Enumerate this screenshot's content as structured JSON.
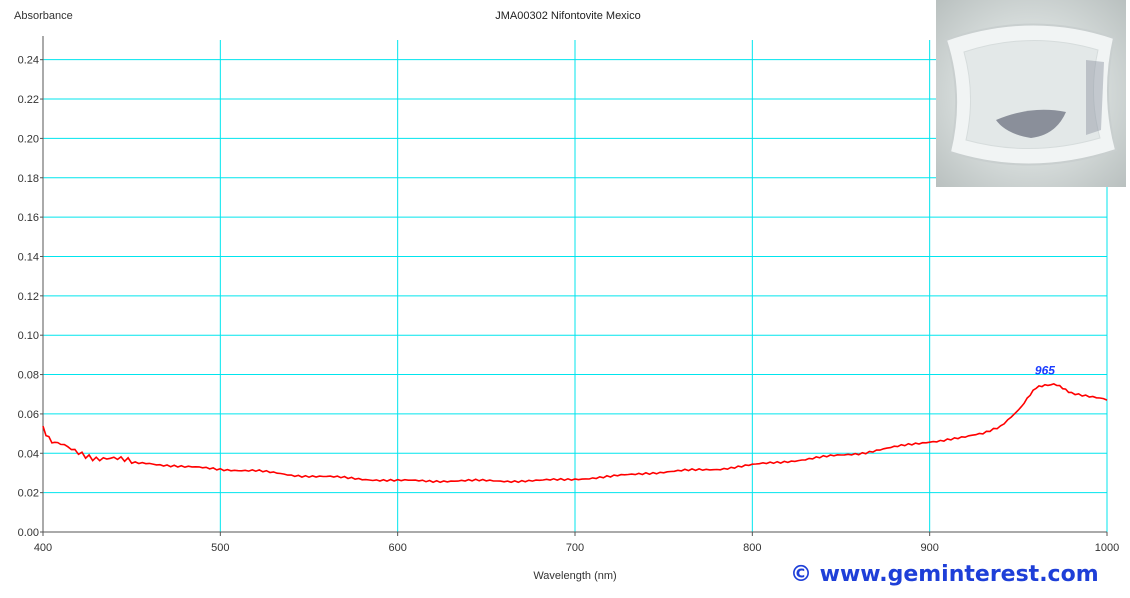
{
  "chart_data": {
    "type": "line",
    "title": "JMA00302 Nifontovite Mexico",
    "xlabel": "Wavelength (nm)",
    "ylabel": "Absorbance",
    "xlim": [
      400,
      1000
    ],
    "ylim": [
      0,
      0.25
    ],
    "x_ticks": [
      "400",
      "500",
      "600",
      "700",
      "800",
      "900",
      "1000"
    ],
    "y_ticks": [
      "0.00",
      "0.02",
      "0.04",
      "0.06",
      "0.08",
      "0.10",
      "0.12",
      "0.14",
      "0.16",
      "0.18",
      "0.20",
      "0.22",
      "0.24"
    ],
    "grid": true,
    "series": [
      {
        "color": "#ff0000",
        "x": [
          400,
          405,
          410,
          420,
          430,
          440,
          450,
          460,
          470,
          480,
          500,
          520,
          540,
          560,
          580,
          600,
          620,
          640,
          660,
          680,
          700,
          720,
          740,
          760,
          780,
          800,
          820,
          840,
          860,
          880,
          900,
          920,
          930,
          940,
          950,
          955,
          960,
          965,
          970,
          975,
          980,
          990,
          1000
        ],
        "y": [
          0.052,
          0.047,
          0.044,
          0.041,
          0.038,
          0.037,
          0.035,
          0.035,
          0.034,
          0.033,
          0.032,
          0.031,
          0.029,
          0.028,
          0.027,
          0.026,
          0.026,
          0.026,
          0.026,
          0.026,
          0.027,
          0.028,
          0.03,
          0.031,
          0.032,
          0.034,
          0.036,
          0.038,
          0.04,
          0.043,
          0.046,
          0.048,
          0.05,
          0.054,
          0.062,
          0.068,
          0.073,
          0.075,
          0.075,
          0.073,
          0.071,
          0.069,
          0.067
        ]
      }
    ],
    "annotations": [
      {
        "text": "965",
        "x": 965,
        "y": 0.076
      }
    ]
  },
  "watermark": "© www.geminterest.com",
  "colors": {
    "grid": "#00e5ee",
    "line": "#ff0000",
    "annotation": "#1a3cff",
    "watermark": "#1e3fd8"
  }
}
